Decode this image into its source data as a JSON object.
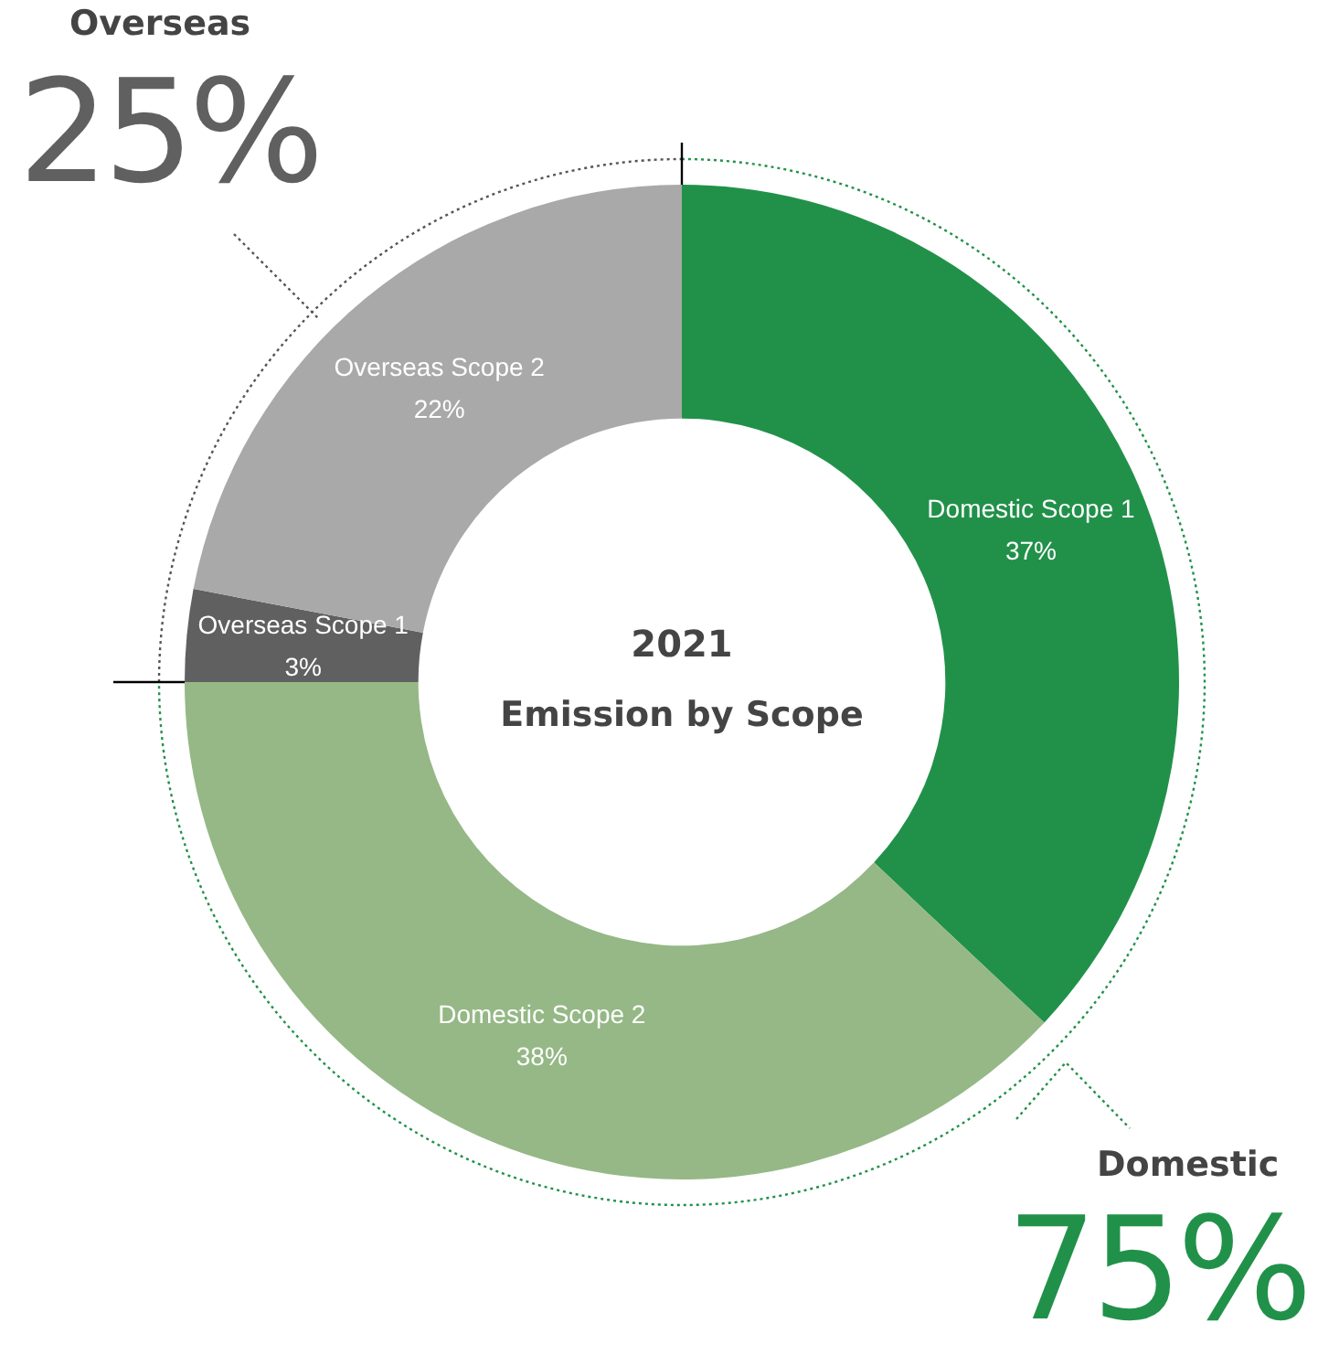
{
  "chart_data": {
    "type": "donut",
    "title": "2021",
    "subtitle": "Emission by Scope",
    "categories": [
      "Domestic Scope 1",
      "Domestic Scope 2",
      "Overseas Scope 1",
      "Overseas Scope 2"
    ],
    "values": [
      37,
      38,
      3,
      22
    ],
    "colors": [
      "#21914a",
      "#95b886",
      "#606060",
      "#a8a9a8"
    ],
    "value_labels": [
      "37%",
      "38%",
      "3%",
      "22%"
    ],
    "annotations": [
      "Overseas",
      "25%",
      "Domestic",
      "75%"
    ],
    "legend": false
  }
}
